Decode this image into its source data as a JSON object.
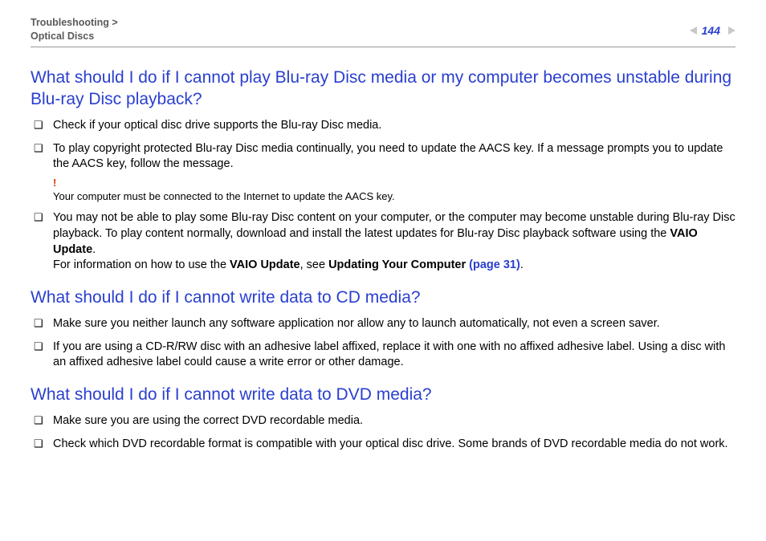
{
  "header": {
    "breadcrumb_l1": "Troubleshooting >",
    "breadcrumb_l2": "Optical Discs",
    "page_number": "144"
  },
  "section1": {
    "heading": "What should I do if I cannot play Blu-ray Disc media or my computer becomes unstable during Blu-ray Disc playback?",
    "bullets": {
      "b1": "Check if your optical disc drive supports the Blu-ray Disc media.",
      "b2": "To play copyright protected Blu-ray Disc media continually, you need to update the AACS key. If a message prompts you to update the AACS key, follow the message.",
      "b2_caution_mark": "!",
      "b2_caution": "Your computer must be connected to the Internet to update the AACS key.",
      "b3_part1": "You may not be able to play some Blu-ray Disc content on your computer, or the computer may become unstable during Blu-ray Disc playback. To play content normally, download and install the latest updates for Blu-ray Disc playback software using the ",
      "b3_bold1": "VAIO Update",
      "b3_part2": ".",
      "b3_line2_a": "For information on how to use the ",
      "b3_line2_bold": "VAIO Update",
      "b3_line2_b": ", see ",
      "b3_line2_bold2": "Updating Your Computer ",
      "b3_line2_link": "(page 31)",
      "b3_line2_end": "."
    }
  },
  "section2": {
    "heading": "What should I do if I cannot write data to CD media?",
    "bullets": {
      "b1": "Make sure you neither launch any software application nor allow any to launch automatically, not even a screen saver.",
      "b2": "If you are using a CD-R/RW disc with an adhesive label affixed, replace it with one with no affixed adhesive label. Using a disc with an affixed adhesive label could cause a write error or other damage."
    }
  },
  "section3": {
    "heading": "What should I do if I cannot write data to DVD media?",
    "bullets": {
      "b1": "Make sure you are using the correct DVD recordable media.",
      "b2": "Check which DVD recordable format is compatible with your optical disc drive. Some brands of DVD recordable media do not work."
    }
  }
}
